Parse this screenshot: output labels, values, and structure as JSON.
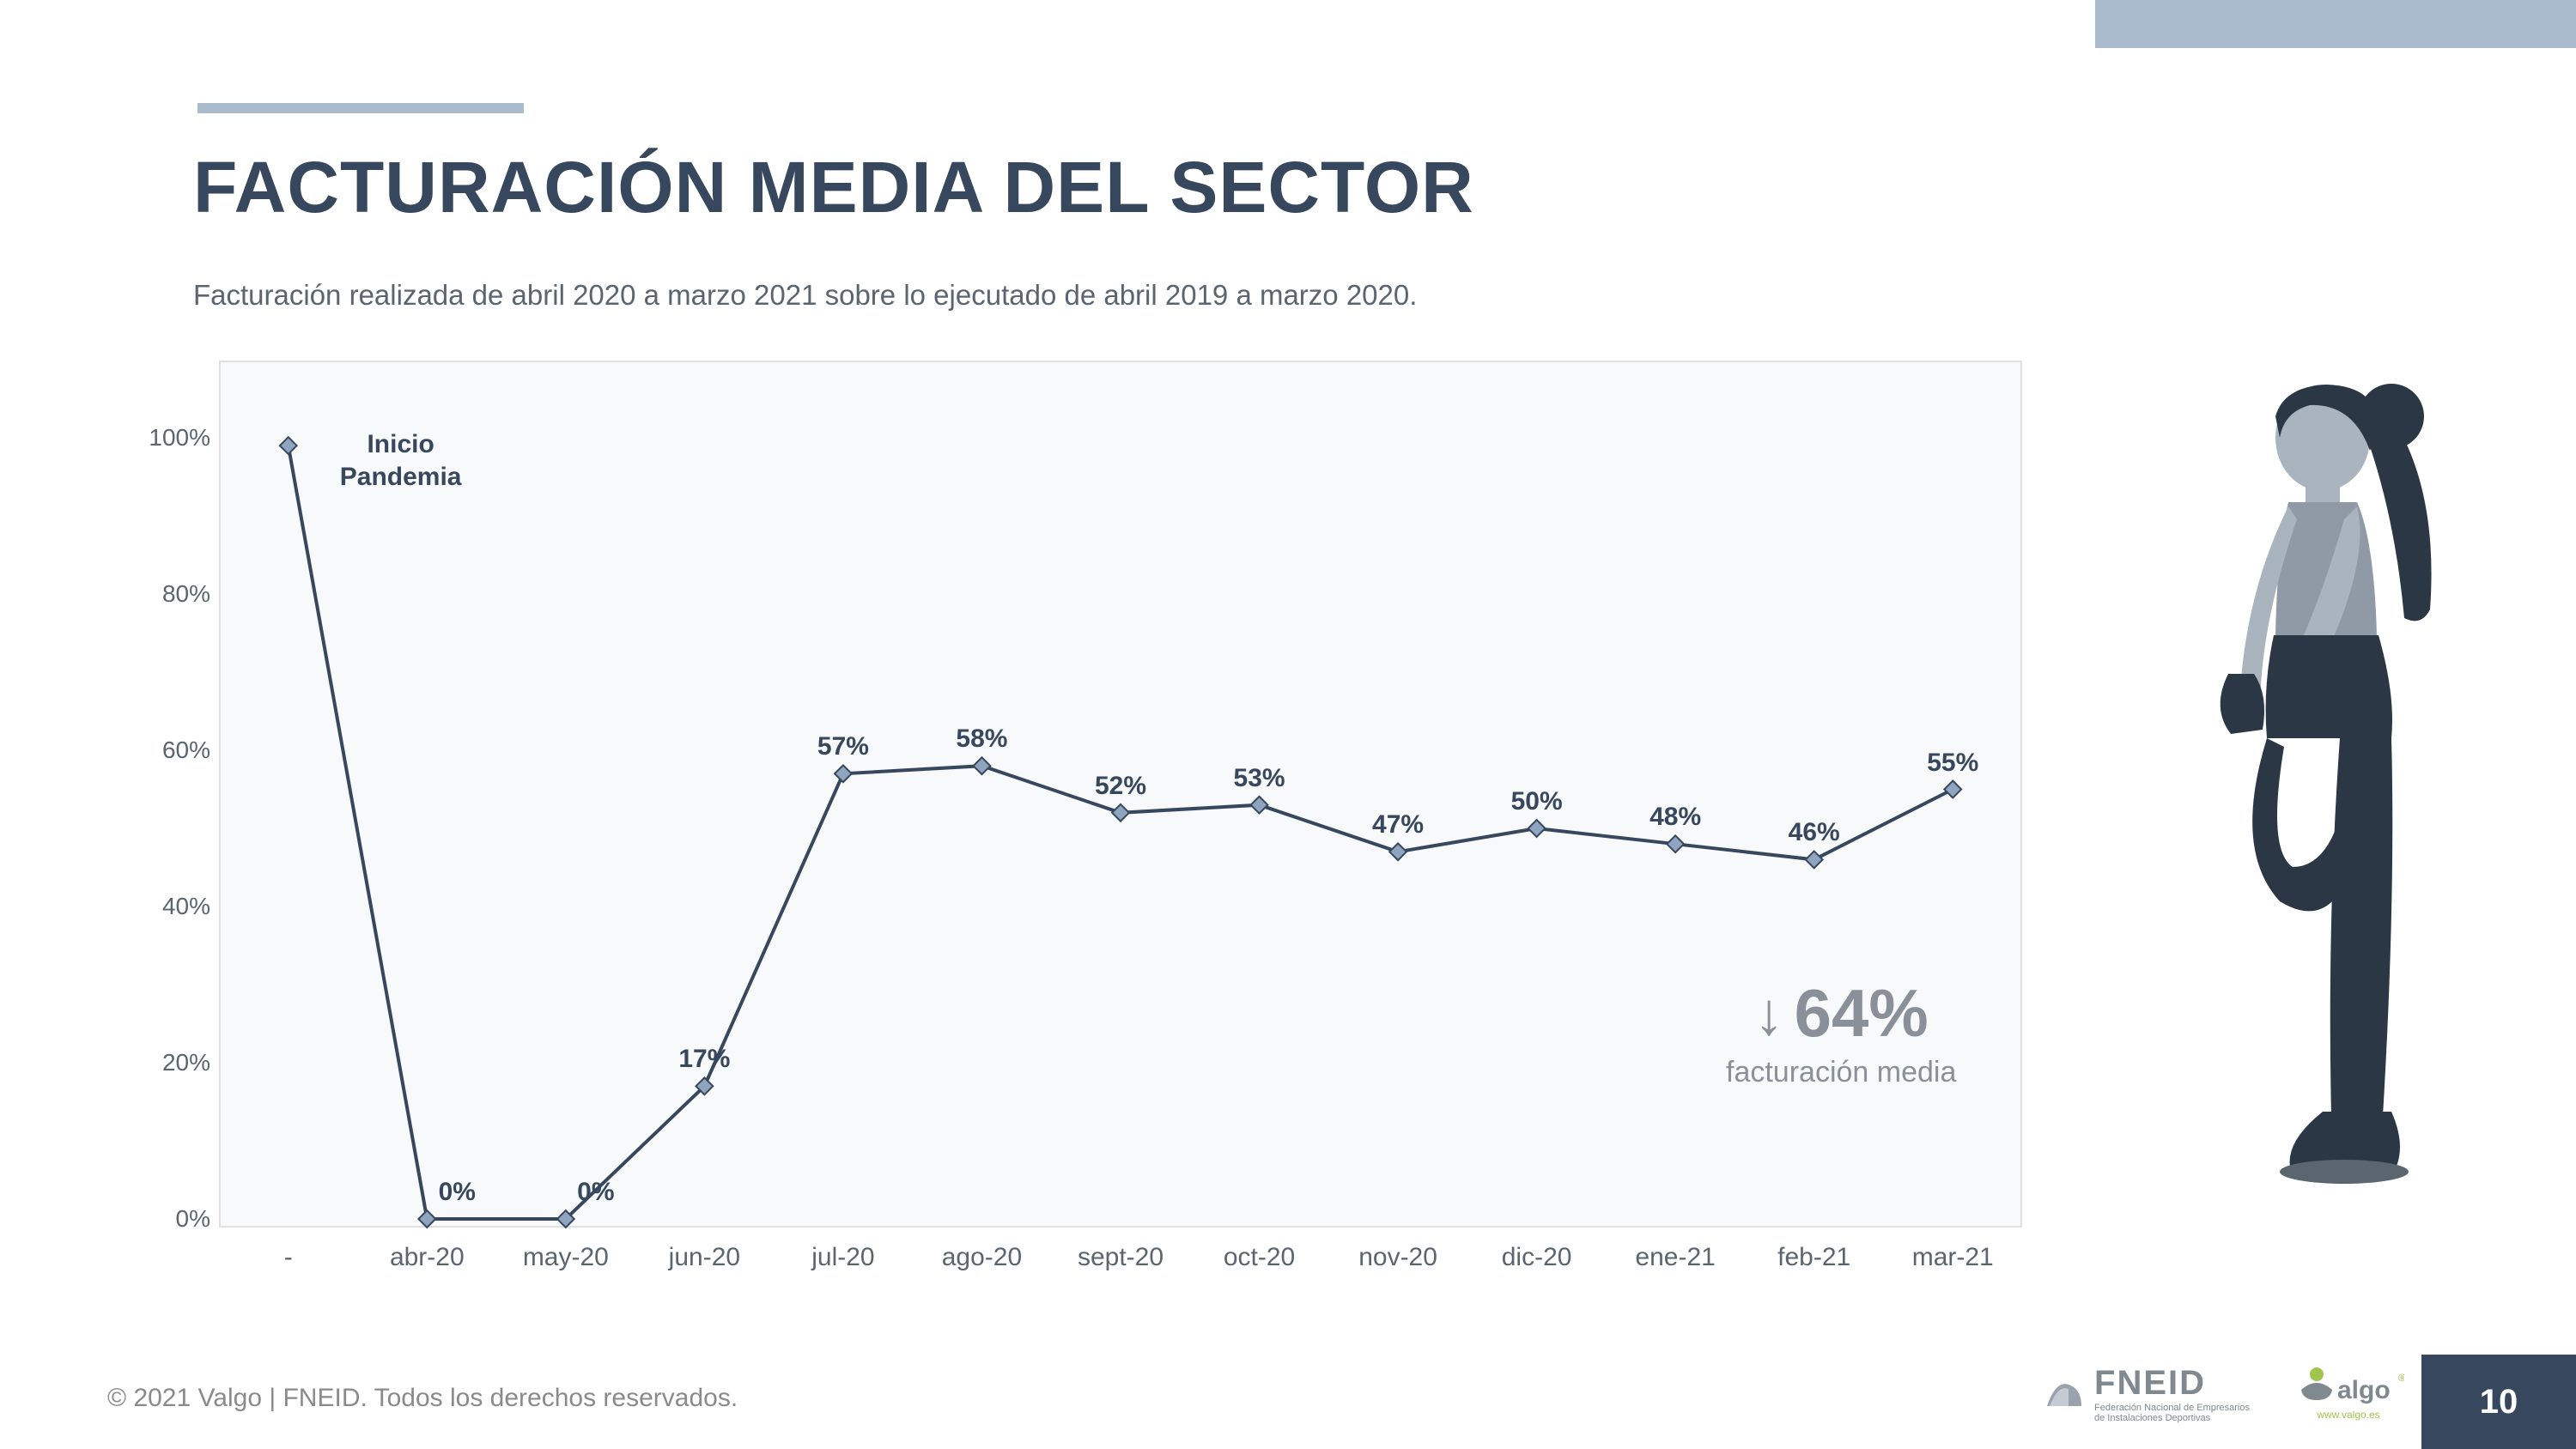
{
  "title": "FACTURACIÓN MEDIA DEL SECTOR",
  "subtitle": "Facturación realizada de abril 2020 a marzo 2021 sobre lo ejecutado de abril 2019 a marzo 2020.",
  "chart": {
    "type": "line",
    "background_color": "#f8f9fa",
    "border_color": "#e0e0e0",
    "line_color": "#37485e",
    "line_width": 4,
    "marker_color": "#8fa5bf",
    "marker_border": "#37485e",
    "marker_size": 7,
    "ylim": [
      0,
      100
    ],
    "ytick_step": 20,
    "y_ticks": [
      "0%",
      "20%",
      "40%",
      "60%",
      "80%",
      "100%"
    ],
    "categories": [
      "-",
      "abr-20",
      "may-20",
      "jun-20",
      "jul-20",
      "ago-20",
      "sept-20",
      "oct-20",
      "nov-20",
      "dic-20",
      "ene-21",
      "feb-21",
      "mar-21"
    ],
    "values": [
      99,
      0,
      0,
      17,
      57,
      58,
      52,
      53,
      47,
      50,
      48,
      46,
      55
    ],
    "data_labels": [
      "",
      "0%",
      "0%",
      "17%",
      "57%",
      "58%",
      "52%",
      "53%",
      "47%",
      "50%",
      "48%",
      "46%",
      "55%"
    ],
    "annotation": {
      "text_line1": "Inicio",
      "text_line2": "Pandemia",
      "index": 0
    },
    "callout": {
      "arrow": "↓",
      "value": "64%",
      "label": "facturación media"
    }
  },
  "footer": {
    "copyright": "© 2021 Valgo | FNEID. Todos los derechos reservados.",
    "logo1_text": "FNEID",
    "logo1_sub1": "Federación Nacional de Empresarios",
    "logo1_sub2": "de Instalaciones Deportivas",
    "logo2_text": "algo",
    "logo2_sub": "www.valgo.es",
    "page_number": "10"
  },
  "colors": {
    "accent": "#aabbce",
    "title": "#37485e",
    "text": "#5a6570",
    "callout": "#8a9099",
    "page_bg": "#37485e"
  }
}
